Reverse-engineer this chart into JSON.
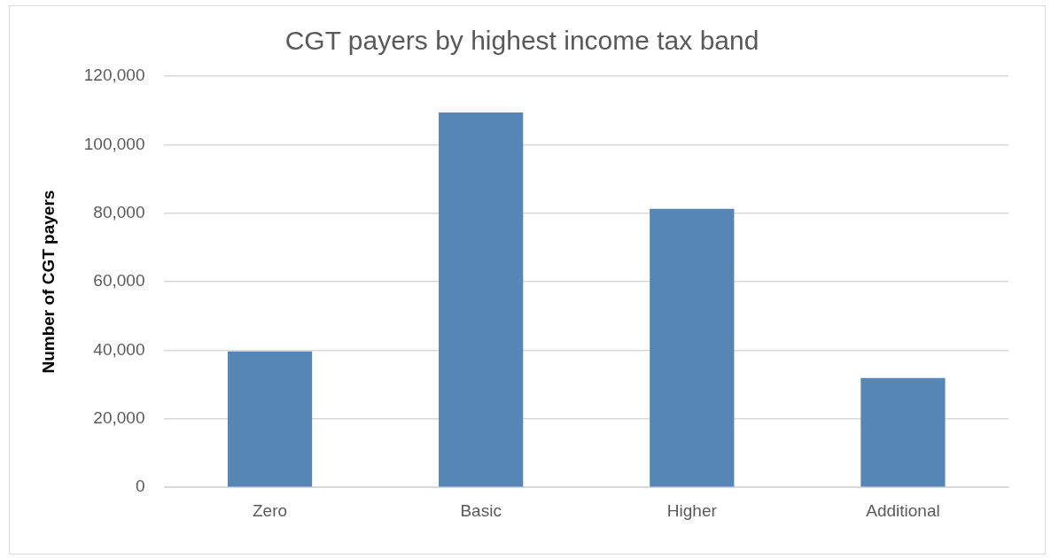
{
  "chart_data": {
    "type": "bar",
    "title": "CGT payers by highest income tax band",
    "ylabel": "Number of CGT payers",
    "categories": [
      "Zero",
      "Basic",
      "Higher",
      "Additional"
    ],
    "series": [
      {
        "color": "#5586b6",
        "values": [
          39700,
          109400,
          81300,
          31900
        ]
      }
    ],
    "ylim": [
      0,
      120000
    ],
    "yticks": [
      0,
      {
        "value": 20000,
        "label": "20,000"
      },
      {
        "value": 40000,
        "label": "40,000"
      },
      {
        "value": 60000,
        "label": "60,000"
      },
      {
        "value": 80000,
        "label": "80,000"
      },
      {
        "value": 100000,
        "label": "100,000"
      },
      {
        "value": 120000,
        "label": "120,000"
      }
    ],
    "grid": "y",
    "legend": false
  }
}
